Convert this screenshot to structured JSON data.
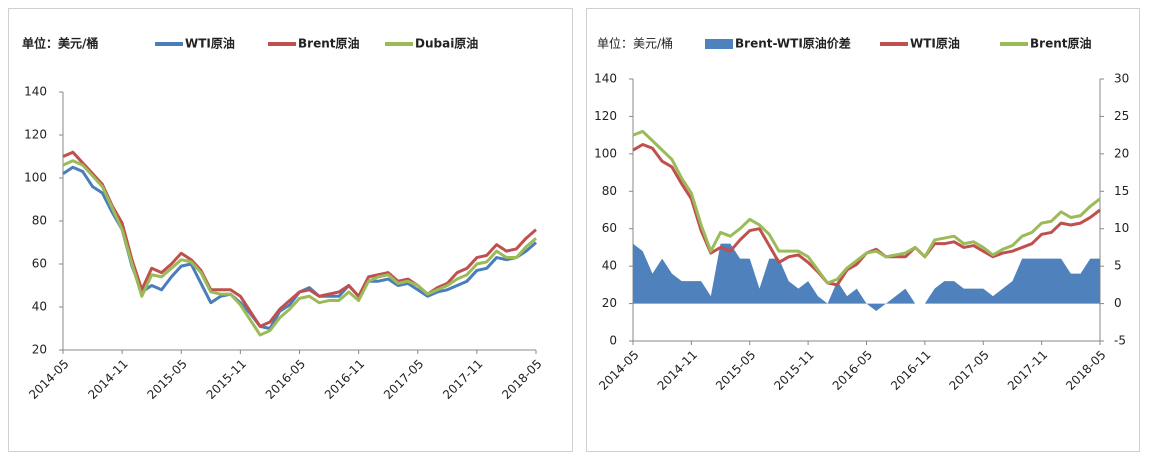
{
  "chart_data": [
    {
      "type": "line",
      "unit_label": "单位：美元/桶",
      "categories": [
        "2014-05",
        null,
        null,
        null,
        null,
        null,
        "2014-11",
        null,
        null,
        null,
        null,
        null,
        "2015-05",
        null,
        null,
        null,
        null,
        null,
        "2015-11",
        null,
        null,
        null,
        null,
        null,
        "2016-05",
        null,
        null,
        null,
        null,
        null,
        "2016-11",
        null,
        null,
        null,
        null,
        null,
        "2017-05",
        null,
        null,
        null,
        null,
        null,
        "2017-11",
        null,
        null,
        null,
        null,
        null,
        "2018-05"
      ],
      "ylim": [
        20,
        140
      ],
      "yticks": [
        20,
        40,
        60,
        80,
        100,
        120,
        140
      ],
      "series": [
        {
          "name": "WTI原油",
          "color": "#4a7ebb",
          "values": [
            102,
            105,
            103,
            96,
            93,
            84,
            76,
            59,
            47,
            50,
            48,
            54,
            59,
            60,
            51,
            42,
            45,
            46,
            42,
            37,
            31,
            30,
            38,
            41,
            47,
            49,
            45,
            45,
            45,
            50,
            45,
            52,
            52,
            53,
            50,
            51,
            48,
            45,
            47,
            48,
            50,
            52,
            57,
            58,
            63,
            62,
            63,
            66,
            70
          ]
        },
        {
          "name": "Brent原油",
          "color": "#c0504d",
          "values": [
            110,
            112,
            107,
            102,
            97,
            87,
            79,
            62,
            48,
            58,
            56,
            60,
            65,
            62,
            57,
            48,
            48,
            48,
            45,
            38,
            31,
            33,
            39,
            43,
            47,
            48,
            45,
            46,
            47,
            50,
            45,
            54,
            55,
            56,
            52,
            53,
            50,
            46,
            49,
            51,
            56,
            58,
            63,
            64,
            69,
            66,
            67,
            72,
            76
          ]
        },
        {
          "name": "Dubai原油",
          "color": "#9bbb59",
          "values": [
            106,
            108,
            106,
            101,
            96,
            86,
            76,
            60,
            45,
            55,
            54,
            58,
            62,
            61,
            56,
            47,
            46,
            46,
            41,
            34,
            27,
            29,
            35,
            39,
            44,
            45,
            42,
            43,
            43,
            47,
            43,
            52,
            54,
            55,
            51,
            52,
            50,
            46,
            48,
            50,
            53,
            55,
            60,
            61,
            66,
            63,
            63,
            68,
            72
          ]
        }
      ]
    },
    {
      "type": "line",
      "unit_label": "单位：美元/桶",
      "categories": [
        "2014-05",
        null,
        null,
        null,
        null,
        null,
        "2014-11",
        null,
        null,
        null,
        null,
        null,
        "2015-05",
        null,
        null,
        null,
        null,
        null,
        "2015-11",
        null,
        null,
        null,
        null,
        null,
        "2016-05",
        null,
        null,
        null,
        null,
        null,
        "2016-11",
        null,
        null,
        null,
        null,
        null,
        "2017-05",
        null,
        null,
        null,
        null,
        null,
        "2017-11",
        null,
        null,
        null,
        null,
        null,
        "2018-05"
      ],
      "ylim": [
        0,
        140
      ],
      "yticks": [
        0,
        20,
        40,
        60,
        80,
        100,
        120,
        140
      ],
      "y2lim": [
        -5,
        30
      ],
      "y2ticks": [
        -5,
        0,
        5,
        10,
        15,
        20,
        25,
        30
      ],
      "series": [
        {
          "name": "Brent-WTI原油价差",
          "color": "#4f81bd",
          "type": "area",
          "axis": "y2",
          "values": [
            8,
            7,
            4,
            6,
            4,
            3,
            3,
            3,
            1,
            8,
            8,
            6,
            6,
            2,
            6,
            6,
            3,
            2,
            3,
            1,
            0,
            3,
            1,
            2,
            0,
            -1,
            0,
            1,
            2,
            0,
            0,
            2,
            3,
            3,
            2,
            2,
            2,
            1,
            2,
            3,
            6,
            6,
            6,
            6,
            6,
            4,
            4,
            6,
            6
          ]
        },
        {
          "name": "WTI原油",
          "color": "#c0504d",
          "values": [
            102,
            105,
            103,
            96,
            93,
            84,
            76,
            59,
            47,
            50,
            48,
            54,
            59,
            60,
            51,
            42,
            45,
            46,
            42,
            37,
            31,
            30,
            38,
            41,
            47,
            49,
            45,
            45,
            45,
            50,
            45,
            52,
            52,
            53,
            50,
            51,
            48,
            45,
            47,
            48,
            50,
            52,
            57,
            58,
            63,
            62,
            63,
            66,
            70
          ]
        },
        {
          "name": "Brent原油",
          "color": "#9bbb59",
          "values": [
            110,
            112,
            107,
            102,
            97,
            87,
            79,
            62,
            48,
            58,
            56,
            60,
            65,
            62,
            57,
            48,
            48,
            48,
            45,
            38,
            31,
            33,
            39,
            43,
            47,
            48,
            45,
            46,
            47,
            50,
            45,
            54,
            55,
            56,
            52,
            53,
            50,
            46,
            49,
            51,
            56,
            58,
            63,
            64,
            69,
            66,
            67,
            72,
            76
          ]
        }
      ]
    }
  ]
}
